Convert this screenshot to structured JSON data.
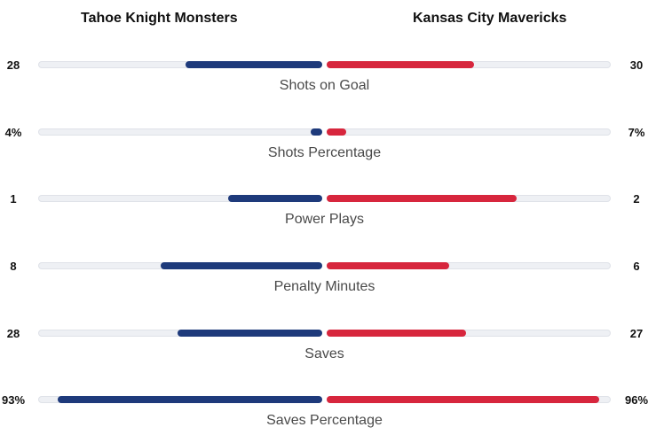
{
  "teams": {
    "home": {
      "name": "Tahoe Knight Monsters",
      "color": "#1e3a7b"
    },
    "away": {
      "name": "Kansas City Mavericks",
      "color": "#d7263d"
    }
  },
  "stats": [
    {
      "label": "Shots on Goal",
      "home": "28",
      "away": "30",
      "home_share": 0.48,
      "away_share": 0.52
    },
    {
      "label": "Shots Percentage",
      "home": "4%",
      "away": "7%",
      "home_share": 0.04,
      "away_share": 0.07
    },
    {
      "label": "Power Plays",
      "home": "1",
      "away": "2",
      "home_share": 0.33,
      "away_share": 0.67
    },
    {
      "label": "Penalty Minutes",
      "home": "8",
      "away": "6",
      "home_share": 0.57,
      "away_share": 0.43
    },
    {
      "label": "Saves",
      "home": "28",
      "away": "27",
      "home_share": 0.51,
      "away_share": 0.49
    },
    {
      "label": "Saves Percentage",
      "home": "93%",
      "away": "96%",
      "home_share": 0.93,
      "away_share": 0.96
    }
  ]
}
